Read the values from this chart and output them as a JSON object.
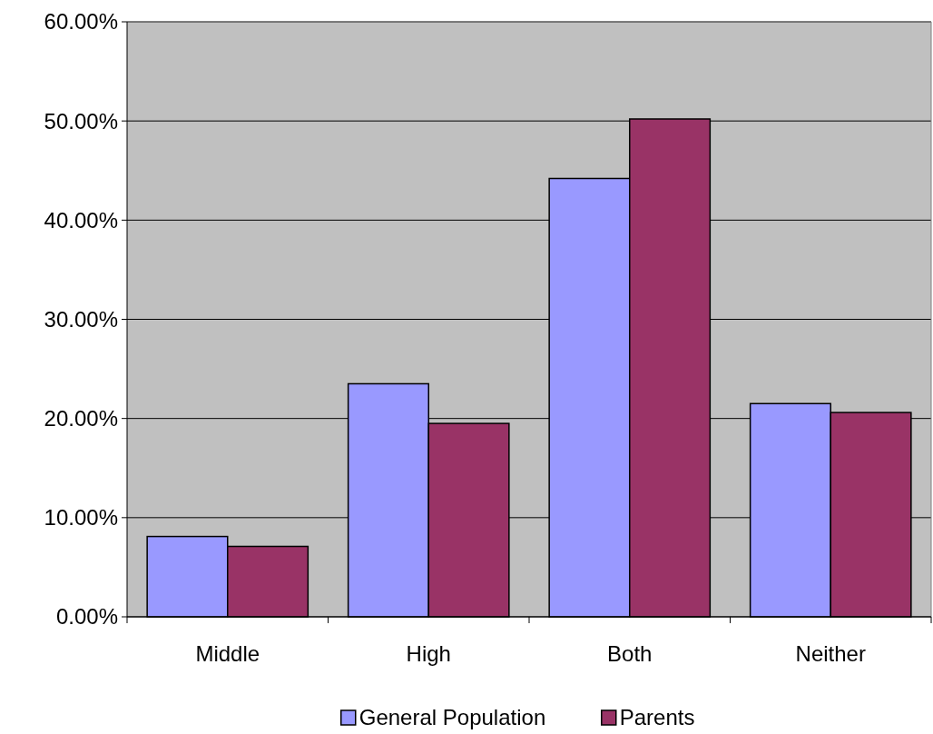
{
  "chart_data": {
    "type": "bar",
    "categories": [
      "Middle",
      "High",
      "Both",
      "Neither"
    ],
    "series": [
      {
        "name": "General Population",
        "color": "#9999ff",
        "values": [
          8.1,
          23.5,
          44.2,
          21.5
        ]
      },
      {
        "name": "Parents",
        "color": "#993366",
        "values": [
          7.1,
          19.5,
          50.2,
          20.6
        ]
      }
    ],
    "ylim": [
      0,
      60
    ],
    "yticks": [
      {
        "value": 0,
        "label": "0.00%"
      },
      {
        "value": 10,
        "label": "10.00%"
      },
      {
        "value": 20,
        "label": "20.00%"
      },
      {
        "value": 30,
        "label": "30.00%"
      },
      {
        "value": 40,
        "label": "40.00%"
      },
      {
        "value": 50,
        "label": "50.00%"
      },
      {
        "value": 60,
        "label": "60.00%"
      }
    ],
    "grid": "y",
    "legend": "bottom"
  }
}
